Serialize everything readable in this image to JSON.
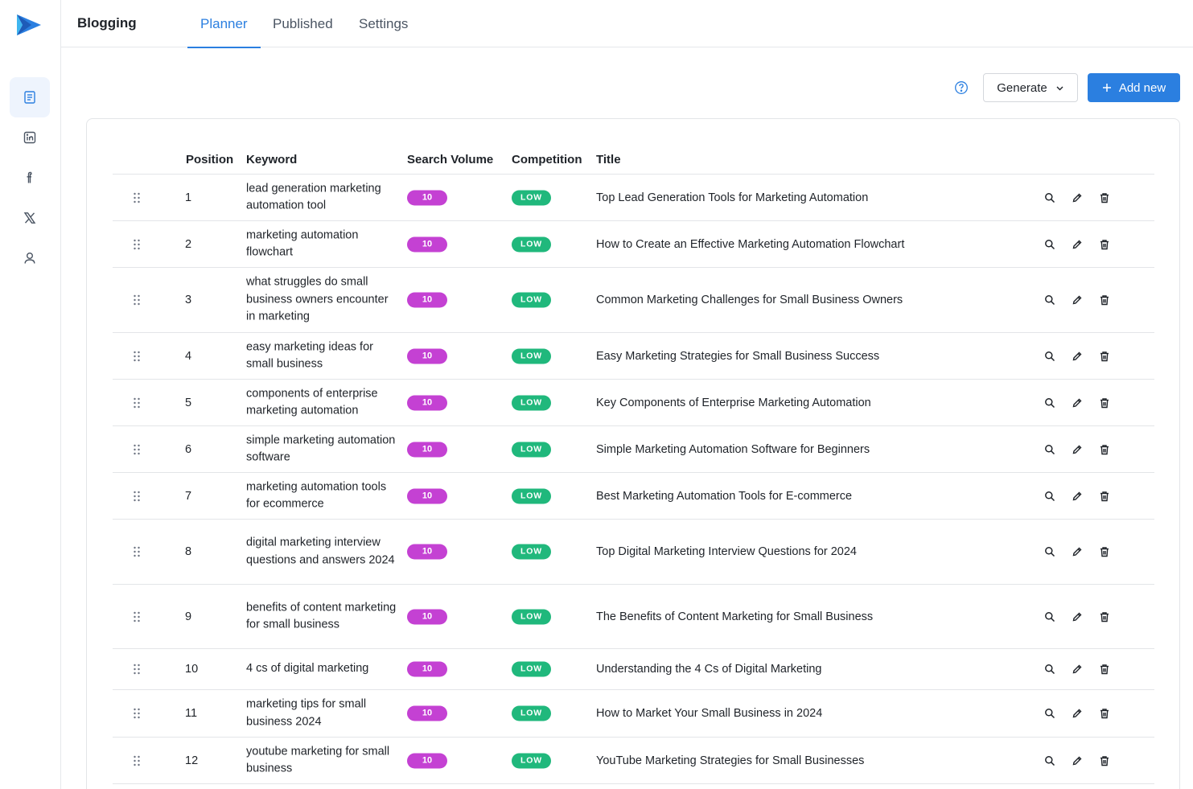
{
  "app": {
    "title": "Blogging"
  },
  "tabs": [
    {
      "label": "Planner",
      "active": true
    },
    {
      "label": "Published",
      "active": false
    },
    {
      "label": "Settings",
      "active": false
    }
  ],
  "sidebar": {
    "items": [
      {
        "icon": "document-icon",
        "active": true
      },
      {
        "icon": "linkedin-icon",
        "active": false
      },
      {
        "icon": "facebook-icon",
        "active": false
      },
      {
        "icon": "x-twitter-icon",
        "active": false
      },
      {
        "icon": "user-icon",
        "active": false
      }
    ]
  },
  "toolbar": {
    "generate_label": "Generate",
    "add_label": "Add new"
  },
  "table": {
    "headers": {
      "position": "Position",
      "keyword": "Keyword",
      "volume": "Search Volume",
      "competition": "Competition",
      "title": "Title"
    },
    "rows": [
      {
        "position": "1",
        "keyword": "lead generation marketing automation tool",
        "volume": "10",
        "competition": "LOW",
        "title": "Top Lead Generation Tools for Marketing Automation"
      },
      {
        "position": "2",
        "keyword": "marketing automation flowchart",
        "volume": "10",
        "competition": "LOW",
        "title": "How to Create an Effective Marketing Automation Flowchart"
      },
      {
        "position": "3",
        "keyword": "what struggles do small business owners encounter in marketing",
        "volume": "10",
        "competition": "LOW",
        "title": "Common Marketing Challenges for Small Business Owners"
      },
      {
        "position": "4",
        "keyword": "easy marketing ideas for small business",
        "volume": "10",
        "competition": "LOW",
        "title": "Easy Marketing Strategies for Small Business Success"
      },
      {
        "position": "5",
        "keyword": "components of enterprise marketing automation",
        "volume": "10",
        "competition": "LOW",
        "title": "Key Components of Enterprise Marketing Automation"
      },
      {
        "position": "6",
        "keyword": "simple marketing automation software",
        "volume": "10",
        "competition": "LOW",
        "title": "Simple Marketing Automation Software for Beginners"
      },
      {
        "position": "7",
        "keyword": "marketing automation tools for ecommerce",
        "volume": "10",
        "competition": "LOW",
        "title": "Best Marketing Automation Tools for E-commerce"
      },
      {
        "position": "8",
        "keyword": "digital marketing interview questions and answers 2024",
        "volume": "10",
        "competition": "LOW",
        "title": "Top Digital Marketing Interview Questions for 2024"
      },
      {
        "position": "9",
        "keyword": "benefits of content marketing for small business",
        "volume": "10",
        "competition": "LOW",
        "title": "The Benefits of Content Marketing for Small Business"
      },
      {
        "position": "10",
        "keyword": "4 cs of digital marketing",
        "volume": "10",
        "competition": "LOW",
        "title": "Understanding the 4 Cs of Digital Marketing"
      },
      {
        "position": "11",
        "keyword": "marketing tips for small business 2024",
        "volume": "10",
        "competition": "LOW",
        "title": "How to Market Your Small Business in 2024"
      },
      {
        "position": "12",
        "keyword": "youtube marketing for small business",
        "volume": "10",
        "competition": "LOW",
        "title": "YouTube Marketing Strategies for Small Businesses"
      }
    ]
  },
  "colors": {
    "accent": "#2b7fe0",
    "volume_badge": "#c441d3",
    "competition_badge": "#20b87c"
  }
}
